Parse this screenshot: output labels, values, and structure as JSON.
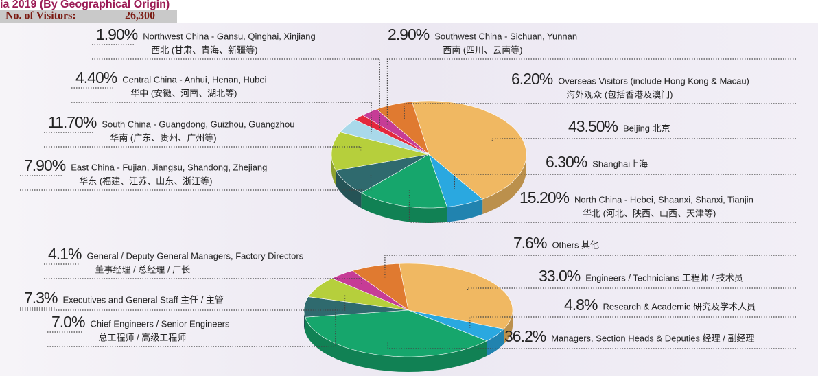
{
  "title": "ia 2019 (By Geographical Origin)",
  "visitors": {
    "label": "No. of Visitors:",
    "value": "26,300"
  },
  "chart_data": [
    {
      "type": "pie",
      "categories": [
        "Beijing 北京",
        "Shanghai上海",
        "North China - Hebei, Shaanxi, Shanxi, Tianjin",
        "East China - Fujian, Jiangsu, Shandong, Zhejiang",
        "South China - Guangdong, Guizhou, Guangzhou",
        "Central China - Anhui, Henan, Hubei",
        "Northwest China - Gansu, Qinghai, Xinjiang",
        "Southwest China  -  Sichuan, Yunnan",
        "Overseas Visitors (include Hong Kong & Macau)"
      ],
      "categories_cn": [
        null,
        null,
        "华北 (河北、陕西、山西、天津等)",
        "华东 (福建、江苏、山东、浙江等)",
        "华南 (广东、贵州、广州等)",
        "华中 (安徽、河南、湖北等)",
        "西北 (甘肃、青海、新疆等)",
        "西南 (四川、云南等)",
        "海外观众 (包括香港及澳门)"
      ],
      "values": [
        43.5,
        6.3,
        15.2,
        7.9,
        11.7,
        4.4,
        1.9,
        2.9,
        6.2
      ],
      "value_labels": [
        "43.50%",
        "6.30%",
        "15.20%",
        "7.90%",
        "11.70%",
        "4.40%",
        "1.90%",
        "2.90%",
        "6.20%"
      ],
      "colors": [
        "#f0b862",
        "#2aa8e0",
        "#16a66c",
        "#2f6a6e",
        "#b6cf3c",
        "#a9d9ea",
        "#e4283c",
        "#c63c96",
        "#e07a30"
      ]
    },
    {
      "type": "pie",
      "categories": [
        "Engineers / Technicians 工程师 / 技术员",
        "Research & Academic 研究及学术人员",
        "Managers, Section Heads & Deputies 经理 / 副经理",
        "Chief Engineers / Senior Engineers",
        "Executives and General Staff 主任  / 主管",
        "General / Deputy General Managers, Factory Directors",
        "Others 其他"
      ],
      "categories_cn": [
        null,
        null,
        null,
        "总工程师 / 高级工程师",
        null,
        "董事经理 / 总经理 / 厂长",
        null
      ],
      "values": [
        33.0,
        4.8,
        36.2,
        7.0,
        7.3,
        4.1,
        7.6
      ],
      "value_labels": [
        "33.0%",
        "4.8%",
        "36.2%",
        "7.0%",
        "7.3%",
        "4.1%",
        "7.6%"
      ],
      "colors": [
        "#f0b862",
        "#2aa8e0",
        "#16a66c",
        "#2f6a6e",
        "#b6cf3c",
        "#c63c96",
        "#e07a30"
      ]
    }
  ]
}
